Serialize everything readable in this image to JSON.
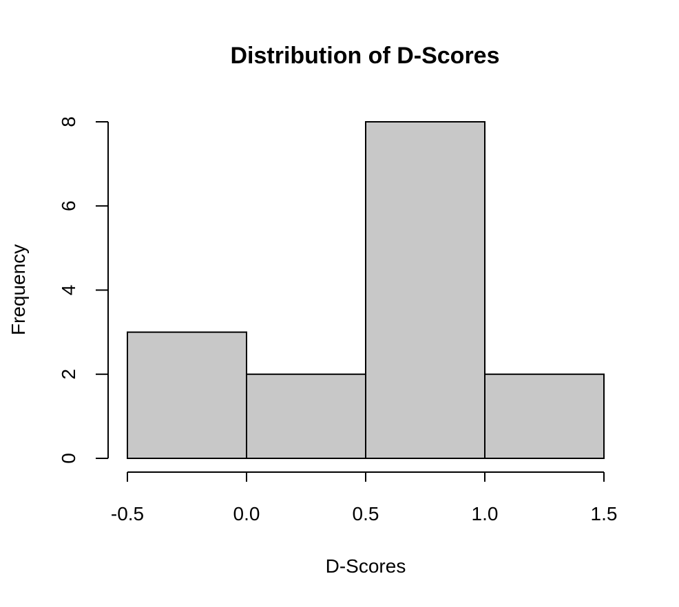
{
  "chart_data": {
    "type": "bar",
    "title": "Distribution of D-Scores",
    "xlabel": "D-Scores",
    "ylabel": "Frequency",
    "bins": [
      {
        "start": -0.5,
        "end": 0.0,
        "count": 3
      },
      {
        "start": 0.0,
        "end": 0.5,
        "count": 2
      },
      {
        "start": 0.5,
        "end": 1.0,
        "count": 8
      },
      {
        "start": 1.0,
        "end": 1.5,
        "count": 2
      }
    ],
    "x_ticks": [
      -0.5,
      0.0,
      0.5,
      1.0,
      1.5
    ],
    "x_tick_labels": [
      "-0.5",
      "0.0",
      "0.5",
      "1.0",
      "1.5"
    ],
    "y_ticks": [
      0,
      2,
      4,
      6,
      8
    ],
    "y_tick_labels": [
      "0",
      "2",
      "4",
      "6",
      "8"
    ],
    "xlim": [
      -0.5,
      1.5
    ],
    "ylim": [
      0,
      8
    ],
    "bar_color": "#c8c8c8",
    "grid": false,
    "legend": "none"
  }
}
